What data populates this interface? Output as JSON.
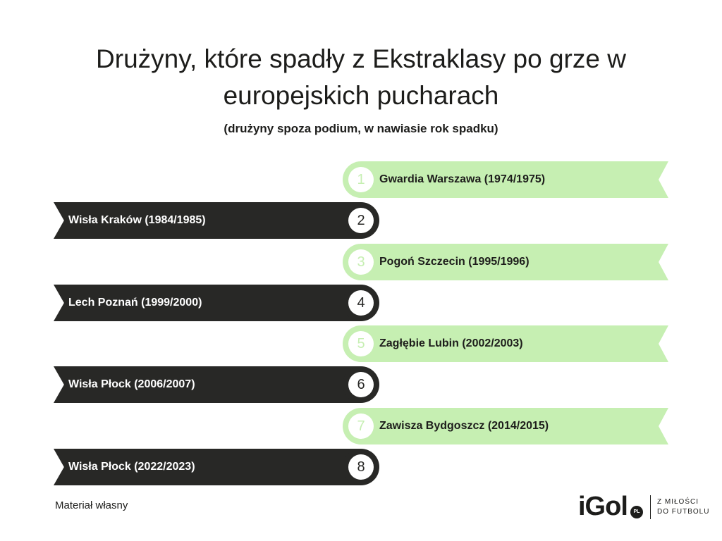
{
  "header": {
    "title_line1": "Drużyny, które spadły z Ekstraklasy po grze w",
    "title_line2": "europejskich pucharach",
    "subtitle": "(drużyny spoza podium, w nawiasie rok spadku)"
  },
  "colors": {
    "light_band": "#c6efb2",
    "dark_band": "#282826",
    "text": "#1d1d1b"
  },
  "items": [
    {
      "rank": "1",
      "label": "Gwardia Warszawa (1974/1975)"
    },
    {
      "rank": "2",
      "label": "Wisła Kraków (1984/1985)"
    },
    {
      "rank": "3",
      "label": "Pogoń Szczecin (1995/1996)"
    },
    {
      "rank": "4",
      "label": "Lech Poznań (1999/2000)"
    },
    {
      "rank": "5",
      "label": "Zagłębie Lubin (2002/2003)"
    },
    {
      "rank": "6",
      "label": "Wisła Płock (2006/2007)"
    },
    {
      "rank": "7",
      "label": "Zawisza Bydgoszcz (2014/2015)"
    },
    {
      "rank": "8",
      "label": "Wisła Płock (2022/2023)"
    }
  ],
  "footer": {
    "source": "Materiał własny",
    "logo_text": "iGol",
    "logo_badge": "PL",
    "tagline_line1": "Z MIŁOŚCI",
    "tagline_line2": "DO FUTBOLU"
  }
}
